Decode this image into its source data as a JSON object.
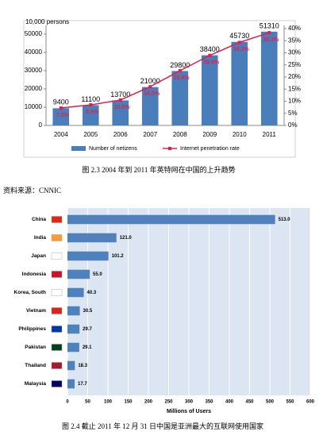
{
  "chart_data": [
    {
      "type": "bar",
      "ylabel": "10,000 persons",
      "categories": [
        "2004",
        "2005",
        "2006",
        "2007",
        "2008",
        "2009",
        "2010",
        "2011"
      ],
      "series": [
        {
          "name": "Number of netizens",
          "color": "#4a7ebb",
          "values": [
            9400,
            11100,
            13700,
            21000,
            29800,
            38400,
            45730,
            51310
          ]
        },
        {
          "name": "Internet penetration rate",
          "color": "#e0204a",
          "type": "line",
          "axis": "y2",
          "values": [
            7.2,
            8.5,
            10.5,
            16.0,
            22.6,
            28.9,
            34.3,
            38.3
          ],
          "value_labels": [
            "7.2%",
            "8.5%",
            "10.5%",
            "16.0%",
            "22.6%",
            "28.9%",
            "34.3%",
            "38.3%"
          ]
        }
      ],
      "ylim": [
        0,
        53000
      ],
      "yticks": [
        0,
        10000,
        20000,
        30000,
        40000,
        50000
      ],
      "y2lim": [
        0,
        40
      ],
      "y2ticks": [
        {
          "value": 0,
          "label": "0%"
        },
        {
          "value": 5,
          "label": "5%"
        },
        {
          "value": 10,
          "label": "10%"
        },
        {
          "value": 15,
          "label": "15%"
        },
        {
          "value": 20,
          "label": "20%"
        },
        {
          "value": 25,
          "label": "25%"
        },
        {
          "value": 30,
          "label": "30%"
        },
        {
          "value": 35,
          "label": "35%"
        },
        {
          "value": 40,
          "label": "40%"
        }
      ],
      "legend": "bottom"
    },
    {
      "type": "bar",
      "orientation": "horizontal",
      "xlabel": "Millions of Users",
      "categories": [
        "China",
        "India",
        "Japan",
        "Indonesia",
        "Korea, South",
        "Vietnam",
        "Philippines",
        "Pakistan",
        "Thailand",
        "Malaysia"
      ],
      "values": [
        513.0,
        121.0,
        101.2,
        55.0,
        40.3,
        30.5,
        29.7,
        29.1,
        18.3,
        17.7
      ],
      "value_labels": [
        "513.0",
        "121.0",
        "101.2",
        "55.0",
        "40.3",
        "30.5",
        "29.7",
        "29.1",
        "18.3",
        "17.7"
      ],
      "color": "#4f81bd",
      "xlim": [
        0,
        600
      ],
      "xticks": [
        0,
        50,
        100,
        150,
        200,
        250,
        300,
        350,
        400,
        450,
        500,
        550,
        600
      ],
      "grid": true
    }
  ],
  "document": {
    "caption1": "图 2.3   2004 年到 2011 年英特网在中国的上升趋势",
    "source": "资料来源：CNNIC",
    "caption2": "图 2.4   截止 2011 年 12 月 31 日中国是亚洲最大的互联网使用国家"
  }
}
